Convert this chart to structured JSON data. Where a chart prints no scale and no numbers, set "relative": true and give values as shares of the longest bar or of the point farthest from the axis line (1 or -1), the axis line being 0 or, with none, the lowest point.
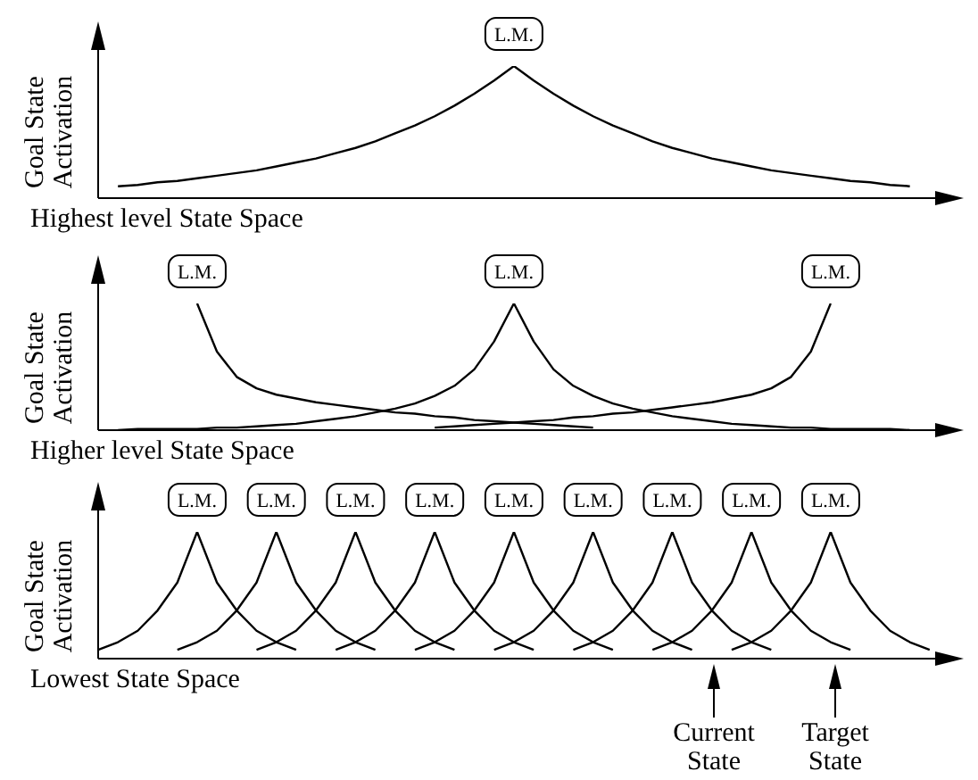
{
  "chart_data": [
    {
      "type": "line",
      "relative": true,
      "xlabel": "Highest level State Space",
      "ylabel": "Goal State Activation",
      "categories": [
        null,
        null,
        null,
        null,
        null,
        null,
        null,
        null,
        null,
        null,
        null,
        null,
        null,
        null,
        null,
        null,
        null,
        null,
        null,
        null,
        null,
        null,
        null,
        null,
        null,
        null,
        null,
        null,
        null,
        null,
        null,
        null,
        null,
        null,
        null,
        null,
        null,
        null,
        null,
        null,
        null,
        null,
        null,
        null
      ],
      "series": [
        {
          "name": "L.M.",
          "color": "#000000",
          "values": [
            null,
            0.09,
            0.1,
            0.12,
            0.13,
            0.15,
            0.17,
            0.19,
            0.21,
            0.24,
            0.27,
            0.3,
            0.34,
            0.38,
            0.43,
            0.49,
            0.55,
            0.62,
            0.7,
            0.79,
            0.89,
            1,
            0.89,
            0.79,
            0.7,
            0.62,
            0.55,
            0.49,
            0.43,
            0.38,
            0.34,
            0.3,
            0.27,
            0.24,
            0.21,
            0.19,
            0.17,
            0.15,
            0.13,
            0.12,
            0.1,
            0.09,
            null,
            null
          ]
        }
      ]
    },
    {
      "type": "line",
      "relative": true,
      "xlabel": "Higher level State Space",
      "ylabel": "Goal State Activation",
      "categories": [
        null,
        null,
        null,
        null,
        null,
        null,
        null,
        null,
        null,
        null,
        null,
        null,
        null,
        null,
        null,
        null,
        null,
        null,
        null,
        null,
        null,
        null,
        null,
        null,
        null,
        null,
        null,
        null,
        null,
        null,
        null,
        null,
        null,
        null,
        null,
        null,
        null,
        null,
        null,
        null,
        null,
        null,
        null,
        null
      ],
      "series": [
        {
          "name": "L.M.",
          "color": "#000000",
          "values": [
            null,
            null,
            null,
            null,
            null,
            1,
            0.62,
            0.42,
            0.33,
            0.28,
            0.25,
            0.22,
            0.2,
            0.18,
            0.16,
            0.14,
            0.13,
            0.11,
            0.1,
            0.08,
            0.07,
            0.06,
            0.05,
            0.04,
            0.03,
            0.02,
            null,
            null,
            null,
            null,
            null,
            null,
            null,
            null,
            null,
            null,
            null,
            null,
            null,
            null,
            null,
            null,
            null,
            null
          ]
        },
        {
          "name": "L.M.",
          "color": "#000000",
          "values": [
            null,
            0,
            0.01,
            0.01,
            0.01,
            0.01,
            0.02,
            0.02,
            0.03,
            0.04,
            0.05,
            0.07,
            0.09,
            0.11,
            0.14,
            0.17,
            0.21,
            0.27,
            0.35,
            0.48,
            0.7,
            1,
            0.7,
            0.48,
            0.35,
            0.27,
            0.21,
            0.17,
            0.14,
            0.11,
            0.09,
            0.07,
            0.05,
            0.04,
            0.03,
            0.02,
            0.02,
            0.01,
            0.01,
            0.01,
            0.01,
            0,
            null,
            null
          ]
        },
        {
          "name": "L.M.",
          "color": "#000000",
          "values": [
            null,
            null,
            null,
            null,
            null,
            null,
            null,
            null,
            null,
            null,
            null,
            null,
            null,
            null,
            null,
            null,
            null,
            0.02,
            0.03,
            0.04,
            0.05,
            0.06,
            0.07,
            0.08,
            0.1,
            0.11,
            0.13,
            0.14,
            0.16,
            0.18,
            0.2,
            0.22,
            0.25,
            0.28,
            0.33,
            0.42,
            0.62,
            1,
            null,
            null,
            null,
            null,
            null,
            null
          ]
        }
      ]
    },
    {
      "type": "line",
      "relative": true,
      "xlabel": "Lowest State Space",
      "ylabel": "Goal State Activation",
      "annotations": [
        "Current State",
        "Target State"
      ],
      "categories": [
        null,
        null,
        null,
        null,
        null,
        null,
        null,
        null,
        null,
        null,
        null,
        null,
        null,
        null,
        null,
        null,
        null,
        null,
        null,
        null,
        null,
        null,
        null,
        null,
        null,
        null,
        null,
        null,
        null,
        null,
        null,
        null,
        null,
        null,
        null,
        null,
        null,
        null,
        null,
        null,
        null,
        null,
        null,
        null
      ],
      "series": [
        {
          "name": "L.M.",
          "color": "#000000",
          "values": [
            0.07,
            0.13,
            0.22,
            0.38,
            0.6,
            1,
            0.6,
            0.38,
            0.22,
            0.13,
            0.07,
            null,
            null,
            null,
            null,
            null,
            null,
            null,
            null,
            null,
            null,
            null,
            null,
            null,
            null,
            null,
            null,
            null,
            null,
            null,
            null,
            null,
            null,
            null,
            null,
            null,
            null,
            null,
            null,
            null,
            null,
            null,
            null,
            null
          ]
        },
        {
          "name": "L.M.",
          "color": "#000000",
          "values": [
            null,
            null,
            null,
            null,
            0.07,
            0.13,
            0.22,
            0.38,
            0.6,
            1,
            0.6,
            0.38,
            0.22,
            0.13,
            0.07,
            null,
            null,
            null,
            null,
            null,
            null,
            null,
            null,
            null,
            null,
            null,
            null,
            null,
            null,
            null,
            null,
            null,
            null,
            null,
            null,
            null,
            null,
            null,
            null,
            null,
            null,
            null,
            null,
            null
          ]
        },
        {
          "name": "L.M.",
          "color": "#000000",
          "values": [
            null,
            null,
            null,
            null,
            null,
            null,
            null,
            null,
            0.07,
            0.13,
            0.22,
            0.38,
            0.6,
            1,
            0.6,
            0.38,
            0.22,
            0.13,
            0.07,
            null,
            null,
            null,
            null,
            null,
            null,
            null,
            null,
            null,
            null,
            null,
            null,
            null,
            null,
            null,
            null,
            null,
            null,
            null,
            null,
            null,
            null,
            null,
            null,
            null
          ]
        },
        {
          "name": "L.M.",
          "color": "#000000",
          "values": [
            null,
            null,
            null,
            null,
            null,
            null,
            null,
            null,
            null,
            null,
            null,
            null,
            0.07,
            0.13,
            0.22,
            0.38,
            0.6,
            1,
            0.6,
            0.38,
            0.22,
            0.13,
            0.07,
            null,
            null,
            null,
            null,
            null,
            null,
            null,
            null,
            null,
            null,
            null,
            null,
            null,
            null,
            null,
            null,
            null,
            null,
            null,
            null,
            null
          ]
        },
        {
          "name": "L.M.",
          "color": "#000000",
          "values": [
            null,
            null,
            null,
            null,
            null,
            null,
            null,
            null,
            null,
            null,
            null,
            null,
            null,
            null,
            null,
            null,
            0.07,
            0.13,
            0.22,
            0.38,
            0.6,
            1,
            0.6,
            0.38,
            0.22,
            0.13,
            0.07,
            null,
            null,
            null,
            null,
            null,
            null,
            null,
            null,
            null,
            null,
            null,
            null,
            null,
            null,
            null,
            null,
            null
          ]
        },
        {
          "name": "L.M.",
          "color": "#000000",
          "values": [
            null,
            null,
            null,
            null,
            null,
            null,
            null,
            null,
            null,
            null,
            null,
            null,
            null,
            null,
            null,
            null,
            null,
            null,
            null,
            null,
            0.07,
            0.13,
            0.22,
            0.38,
            0.6,
            1,
            0.6,
            0.38,
            0.22,
            0.13,
            0.07,
            null,
            null,
            null,
            null,
            null,
            null,
            null,
            null,
            null,
            null,
            null,
            null,
            null
          ]
        },
        {
          "name": "L.M.",
          "color": "#000000",
          "values": [
            null,
            null,
            null,
            null,
            null,
            null,
            null,
            null,
            null,
            null,
            null,
            null,
            null,
            null,
            null,
            null,
            null,
            null,
            null,
            null,
            null,
            null,
            null,
            null,
            0.07,
            0.13,
            0.22,
            0.38,
            0.6,
            1,
            0.6,
            0.38,
            0.22,
            0.13,
            0.07,
            null,
            null,
            null,
            null,
            null,
            null,
            null,
            null,
            null
          ]
        },
        {
          "name": "L.M.",
          "color": "#000000",
          "values": [
            null,
            null,
            null,
            null,
            null,
            null,
            null,
            null,
            null,
            null,
            null,
            null,
            null,
            null,
            null,
            null,
            null,
            null,
            null,
            null,
            null,
            null,
            null,
            null,
            null,
            null,
            null,
            null,
            0.07,
            0.13,
            0.22,
            0.38,
            0.6,
            1,
            0.6,
            0.38,
            0.22,
            0.13,
            0.07,
            null,
            null,
            null,
            null,
            null
          ]
        },
        {
          "name": "L.M.",
          "color": "#000000",
          "values": [
            null,
            null,
            null,
            null,
            null,
            null,
            null,
            null,
            null,
            null,
            null,
            null,
            null,
            null,
            null,
            null,
            null,
            null,
            null,
            null,
            null,
            null,
            null,
            null,
            null,
            null,
            null,
            null,
            null,
            null,
            null,
            null,
            0.07,
            0.13,
            0.22,
            0.38,
            0.6,
            1,
            0.6,
            0.38,
            0.22,
            0.13,
            0.07,
            null
          ]
        }
      ]
    }
  ]
}
